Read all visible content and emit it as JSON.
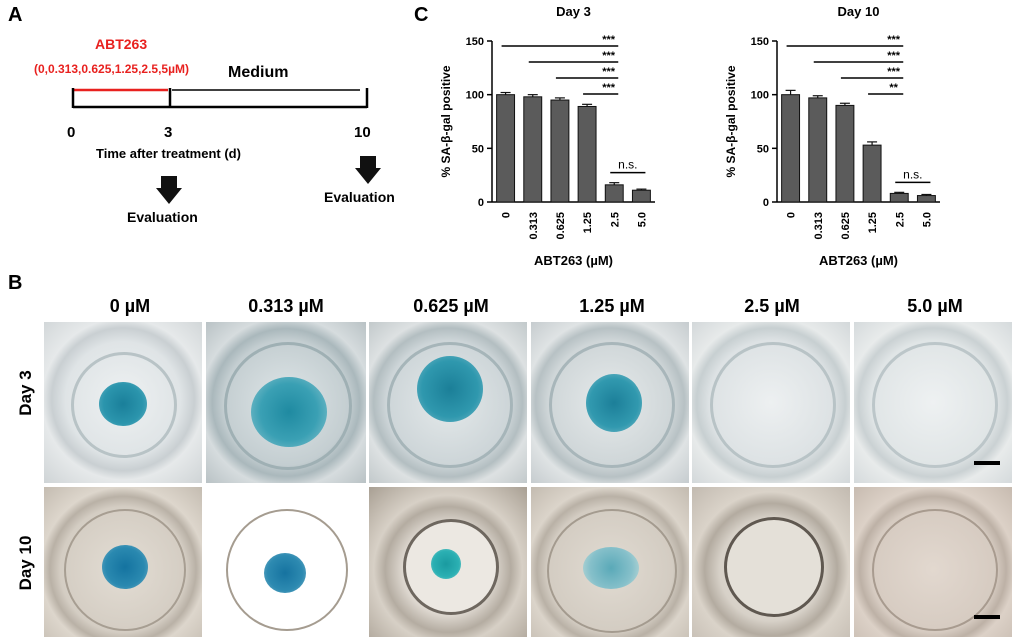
{
  "panel_a": {
    "letter": "A",
    "drug_label": "ABT263",
    "concentrations": "(0,0.313,0.625,1.25,2.5,5µM)",
    "medium_label": "Medium",
    "tick_0": "0",
    "tick_3": "3",
    "tick_10": "10",
    "axis_label": "Time after treatment (d)",
    "eval_left": "Evaluation",
    "eval_right": "Evaluation",
    "colors": {
      "drug": "#e8211f",
      "timeline": "#000000"
    }
  },
  "panel_b": {
    "letter": "B",
    "columns": [
      "0 µM",
      "0.313 µM",
      "0.625 µM",
      "1.25 µM",
      "2.5 µM",
      "5.0 µM"
    ],
    "rows": [
      "Day 3",
      "Day 10"
    ],
    "stain_color": "#1a8da3"
  },
  "panel_c": {
    "letter": "C",
    "bar_color": "#5b5b5b"
  },
  "chart_data": [
    {
      "type": "bar",
      "title": "Day  3",
      "xlabel": "ABT263 (µM)",
      "ylabel": "% SA-β-gal positive",
      "categories": [
        "0",
        "0.313",
        "0.625",
        "1.25",
        "2.5",
        "5.0"
      ],
      "values": [
        100,
        98,
        95,
        89,
        16,
        11
      ],
      "errors": [
        2,
        2,
        2,
        2,
        2,
        1
      ],
      "ylim": [
        0,
        150
      ],
      "yticks": [
        "0",
        "50",
        "100",
        "150"
      ],
      "significance": [
        {
          "from": 0,
          "to": 4,
          "label": "***"
        },
        {
          "from": 1,
          "to": 4,
          "label": "***"
        },
        {
          "from": 2,
          "to": 4,
          "label": "***"
        },
        {
          "from": 3,
          "to": 4,
          "label": "***"
        },
        {
          "from": 4,
          "to": 5,
          "label": "n.s."
        }
      ]
    },
    {
      "type": "bar",
      "title": "Day  10",
      "xlabel": "ABT263 (µM)",
      "ylabel": "% SA-β-gal positive",
      "categories": [
        "0",
        "0.313",
        "0.625",
        "1.25",
        "2.5",
        "5.0"
      ],
      "values": [
        100,
        97,
        90,
        53,
        8,
        6
      ],
      "errors": [
        4,
        2,
        2,
        3,
        1,
        1
      ],
      "ylim": [
        0,
        150
      ],
      "yticks": [
        "0",
        "50",
        "100",
        "150"
      ],
      "significance": [
        {
          "from": 0,
          "to": 4,
          "label": "***"
        },
        {
          "from": 1,
          "to": 4,
          "label": "***"
        },
        {
          "from": 2,
          "to": 4,
          "label": "***"
        },
        {
          "from": 3,
          "to": 4,
          "label": "**"
        },
        {
          "from": 4,
          "to": 5,
          "label": "n.s."
        }
      ]
    }
  ]
}
